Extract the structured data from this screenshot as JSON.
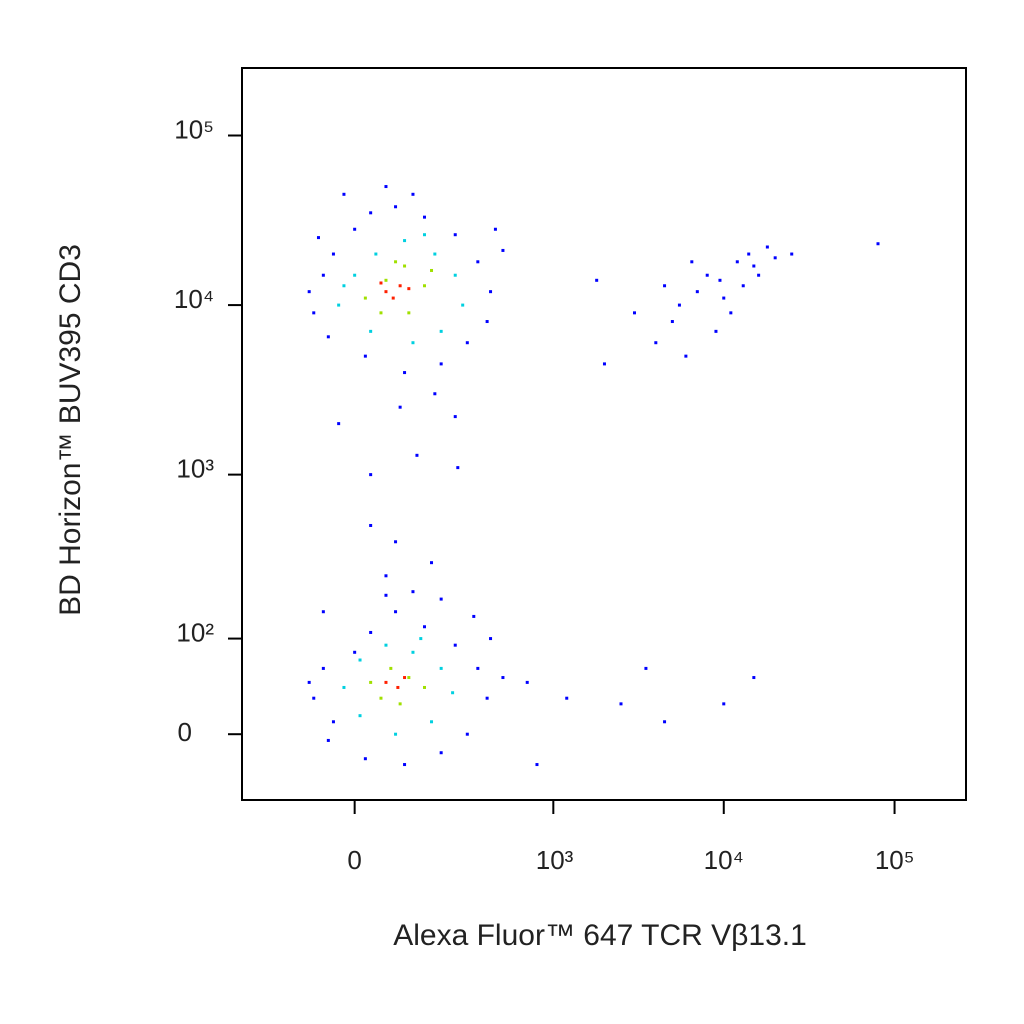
{
  "chart_data": {
    "type": "scatter",
    "scale": "biexponential",
    "x_label": "Alexa Fluor™ 647 TCR Vβ13.1",
    "y_label": "BD Horizon™ BUV395 CD3",
    "xlim": [
      -300,
      262000
    ],
    "ylim": [
      -60,
      250000
    ],
    "xticks": [
      0,
      {
        "value": 1000,
        "label": "10³"
      },
      {
        "value": 10000,
        "label": "10⁴"
      },
      {
        "value": 100000,
        "label": "10⁵"
      }
    ],
    "yticks": [
      0,
      {
        "value": 100,
        "label": "10²"
      },
      {
        "value": 1000,
        "label": "10³"
      },
      {
        "value": 10000,
        "label": "10⁴"
      },
      {
        "value": 100000,
        "label": "10⁵"
      }
    ],
    "series": [
      {
        "color": "#0000ff",
        "x": [
          -80,
          -60,
          -40,
          0,
          30,
          80,
          150,
          250,
          350,
          420,
          400,
          300,
          200,
          100,
          20,
          -50,
          -90,
          -70,
          120,
          60,
          180,
          90,
          -30,
          250,
          130,
          260,
          30,
          500,
          450,
          -20,
          4000,
          5000,
          6000,
          7000,
          8000,
          9000,
          10000,
          12000,
          14000,
          16000,
          18000,
          20000,
          6500,
          5500,
          11000,
          13000,
          15000,
          9500,
          3000,
          25000,
          80000,
          1800,
          2000,
          4500,
          30,
          80,
          60,
          170,
          -60,
          -80,
          -60,
          -40,
          0,
          30,
          80,
          150,
          250,
          350,
          400,
          300,
          200,
          100,
          20,
          -50,
          120,
          200,
          60,
          330,
          500,
          700,
          1200,
          2500,
          4500,
          10000,
          15000,
          3500,
          800,
          -90,
          420
        ],
        "values": [
          9000,
          15000,
          20000,
          28000,
          35000,
          38000,
          33000,
          26000,
          18000,
          12000,
          8000,
          6000,
          4500,
          4000,
          5000,
          6500,
          12000,
          25000,
          45000,
          50000,
          3000,
          2500,
          2000,
          2200,
          1300,
          1100,
          1000,
          21000,
          28000,
          45000,
          6000,
          8000,
          5000,
          12000,
          15000,
          7000,
          11000,
          18000,
          20000,
          15000,
          22000,
          19000,
          18000,
          10000,
          9000,
          13000,
          17000,
          14000,
          9000,
          20000,
          23000,
          14000,
          4500,
          13000,
          500,
          400,
          250,
          300,
          150,
          30,
          60,
          10,
          80,
          110,
          150,
          120,
          90,
          60,
          30,
          0,
          -15,
          -25,
          -20,
          -5,
          200,
          180,
          190,
          140,
          50,
          45,
          30,
          25,
          10,
          25,
          50,
          60,
          -25,
          45,
          100
        ]
      },
      {
        "color": "#00d0e0",
        "x": [
          -30,
          0,
          40,
          100,
          180,
          250,
          280,
          200,
          120,
          30,
          -20,
          150,
          -20,
          10,
          60,
          120,
          200,
          240,
          170,
          80,
          10,
          140
        ],
        "values": [
          10000,
          15000,
          20000,
          24000,
          20000,
          15000,
          10000,
          7000,
          6000,
          7000,
          13000,
          26000,
          40,
          70,
          90,
          80,
          60,
          35,
          10,
          0,
          15,
          100
        ]
      },
      {
        "color": "#a0e000",
        "x": [
          20,
          60,
          100,
          150,
          110,
          50,
          170,
          80,
          30,
          70,
          110,
          150,
          90,
          50
        ],
        "values": [
          11000,
          14000,
          17000,
          13000,
          9000,
          9000,
          16000,
          18000,
          45,
          60,
          50,
          40,
          25,
          30
        ]
      },
      {
        "color": "#ff2000",
        "x": [
          60,
          90,
          75,
          110,
          50,
          60,
          85,
          100
        ],
        "values": [
          12000,
          13000,
          11000,
          12500,
          13500,
          45,
          40,
          50
        ]
      }
    ]
  }
}
